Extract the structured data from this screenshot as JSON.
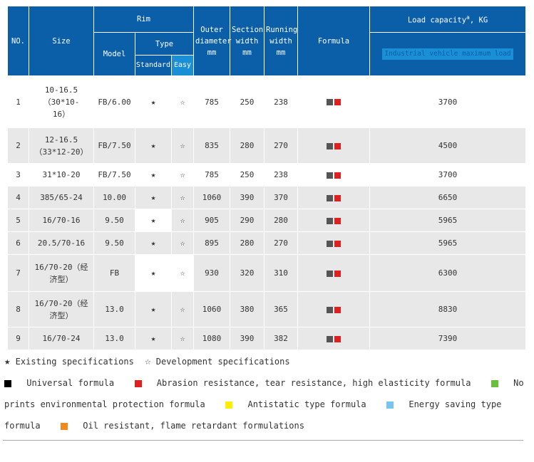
{
  "header": {
    "no": "NO.",
    "size": "Size",
    "rim": "Rim",
    "model": "Model",
    "type": "Type",
    "standard": "Standard",
    "easy": "Easy",
    "outer_diameter": "Outer diameter mm",
    "section_width": "Section width mm",
    "running_width": "Running width mm",
    "formula": "Formula",
    "load_capacity": "Load capacity",
    "load_sup": "a",
    "load_unit": ", KG",
    "load_sub": "Industrial vehicle maximum load"
  },
  "rows": [
    {
      "no": "1",
      "size": "10-16.5（30*10-16）",
      "model": "FB/6.00",
      "standard": "★",
      "easy": "☆",
      "outer": "785",
      "section": "250",
      "running": "238",
      "load": "3700"
    },
    {
      "no": "2",
      "size": "12-16.5（33*12-20）",
      "model": "FB/7.50",
      "standard": "★",
      "easy": "☆",
      "outer": "835",
      "section": "280",
      "running": "270",
      "load": "4500"
    },
    {
      "no": "3",
      "size": "31*10-20",
      "model": "FB/7.50",
      "standard": "★",
      "easy": "☆",
      "outer": "785",
      "section": "250",
      "running": "238",
      "load": "3700"
    },
    {
      "no": "4",
      "size": "385/65-24",
      "model": "10.00",
      "standard": "★",
      "easy": "☆",
      "outer": "1060",
      "section": "390",
      "running": "370",
      "load": "6650"
    },
    {
      "no": "5",
      "size": "16/70-16",
      "model": "9.50",
      "standard": "★",
      "easy": "☆",
      "outer": "905",
      "section": "290",
      "running": "280",
      "load": "5965"
    },
    {
      "no": "6",
      "size": "20.5/70-16",
      "model": "9.50",
      "standard": "★",
      "easy": "☆",
      "outer": "895",
      "section": "280",
      "running": "270",
      "load": "5965"
    },
    {
      "no": "7",
      "size": "16/70-20（经济型）",
      "model": "FB",
      "standard": "★",
      "easy": "☆",
      "outer": "930",
      "section": "320",
      "running": "310",
      "load": "6300"
    },
    {
      "no": "8",
      "size": "16/70-20（经济型）",
      "model": "13.0",
      "standard": "★",
      "easy": "☆",
      "outer": "1060",
      "section": "380",
      "running": "365",
      "load": "8830"
    },
    {
      "no": "9",
      "size": "16/70-24",
      "model": "13.0",
      "standard": "★",
      "easy": "☆",
      "outer": "1080",
      "section": "390",
      "running": "382",
      "load": "7390"
    }
  ],
  "legend": {
    "existing_mark": "★",
    "existing": "Existing specifications",
    "development_mark": "☆",
    "development": "Development specifications",
    "universal": "Universal formula",
    "abrasion": "Abrasion resistance, tear resistance, high elasticity formula",
    "no_prints_a": "No",
    "no_prints_b": "prints environmental protection formula",
    "antistatic": "Antistatic type formula",
    "energy_a": "Energy saving type",
    "energy_b": "formula",
    "oil": "Oil resistant, flame retardant formulations"
  },
  "colors": {
    "header_blue": "#0b5ea8",
    "header_light_blue": "#1a8fd6",
    "universal": "#000000",
    "abrasion": "#e02020",
    "no_prints": "#6cbf3c",
    "antistatic": "#ffee00",
    "energy": "#79c4ee",
    "oil": "#f08a1e"
  }
}
